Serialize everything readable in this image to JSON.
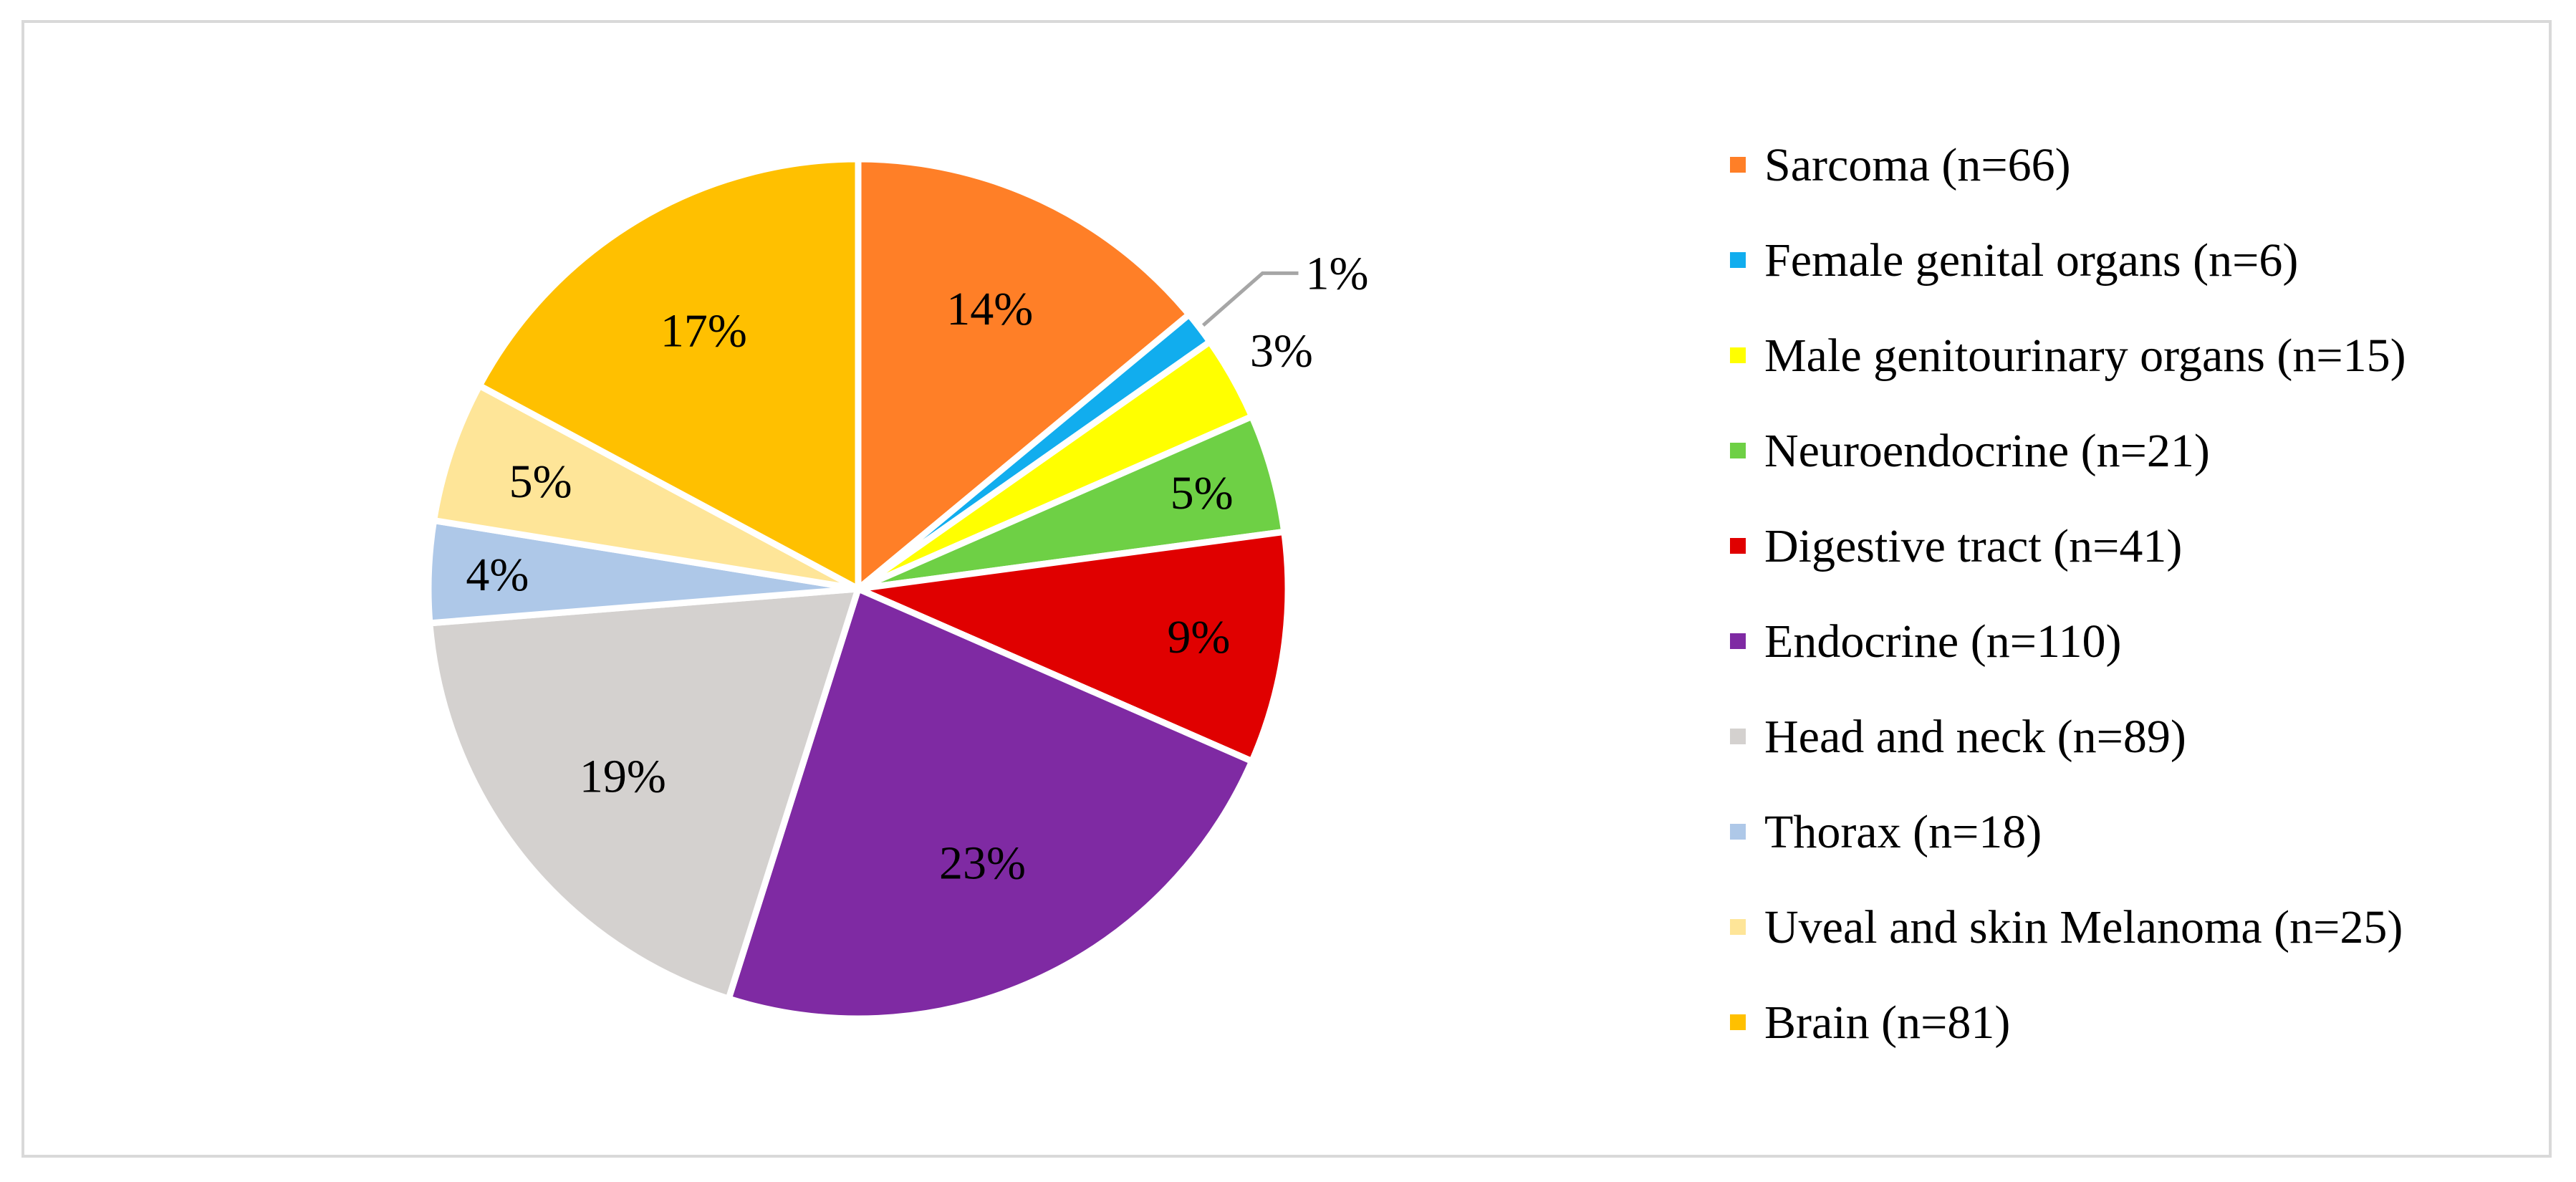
{
  "chart_data": {
    "type": "pie",
    "title": "",
    "legend_position": "right",
    "start_angle_deg": 0,
    "direction": "clockwise",
    "slices": [
      {
        "label": "Sarcoma (n=66)",
        "n": 66,
        "pct_label": "14%",
        "color": "#FF7F27"
      },
      {
        "label": "Female genital organs (n=6)",
        "n": 6,
        "pct_label": "1%",
        "color": "#11ADEE"
      },
      {
        "label": "Male genitourinary organs (n=15)",
        "n": 15,
        "pct_label": "3%",
        "color": "#FFFF00"
      },
      {
        "label": "Neuroendocrine (n=21)",
        "n": 21,
        "pct_label": "5%",
        "color": "#6ED045"
      },
      {
        "label": "Digestive tract (n=41)",
        "n": 41,
        "pct_label": "9%",
        "color": "#E00000"
      },
      {
        "label": "Endocrine (n=110)",
        "n": 110,
        "pct_label": "23%",
        "color": "#7F2AA3"
      },
      {
        "label": "Head and neck (n=89)",
        "n": 89,
        "pct_label": "19%",
        "color": "#D4D1CF"
      },
      {
        "label": "Thorax (n=18)",
        "n": 18,
        "pct_label": "4%",
        "color": "#AEC8E8"
      },
      {
        "label": "Uveal and skin Melanoma (n=25)",
        "n": 25,
        "pct_label": "5%",
        "color": "#FEE598"
      },
      {
        "label": "Brain (n=81)",
        "n": 81,
        "pct_label": "17%",
        "color": "#FFC000"
      }
    ]
  }
}
